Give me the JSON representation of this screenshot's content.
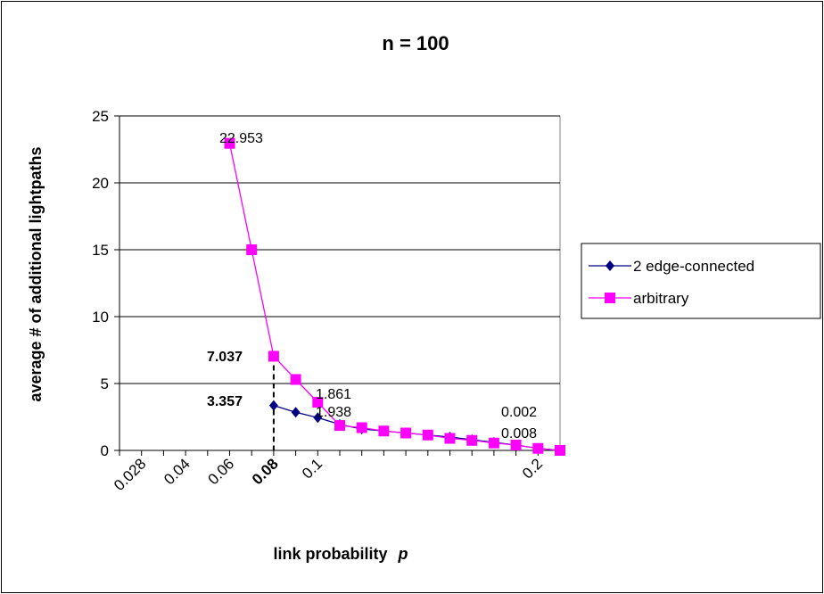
{
  "chart_data": {
    "type": "line",
    "title": "n = 100",
    "xlabel": "link probability",
    "xlabel_var": "p",
    "ylabel": "average # of additional lightpaths",
    "ylim": [
      0,
      25
    ],
    "y_ticks": [
      "0",
      "5",
      "10",
      "15",
      "20",
      "25"
    ],
    "x_ticks": [
      "0.028",
      "0.04",
      "0.06",
      "0.08",
      "0.1",
      "0.2"
    ],
    "x_tick_positions": [
      1,
      3,
      5,
      7,
      9,
      19
    ],
    "x_tick_bold": "0.08",
    "x_range": [
      0,
      20
    ],
    "grid": "horizontal",
    "legend_position": "right",
    "series": [
      {
        "name": "2 edge-connected",
        "color": "#000080",
        "marker": "diamond",
        "x": [
          7,
          8,
          9,
          10,
          11,
          12,
          13,
          14,
          15,
          16,
          17,
          18,
          19,
          20
        ],
        "values": [
          3.357,
          2.85,
          2.45,
          1.938,
          1.6,
          1.45,
          1.3,
          1.15,
          1.0,
          0.8,
          0.6,
          0.4,
          0.15,
          0.008
        ]
      },
      {
        "name": "arbitrary",
        "color": "#ff00ff",
        "marker": "square",
        "x": [
          5,
          6,
          7,
          8,
          9,
          10,
          11,
          12,
          13,
          14,
          15,
          16,
          17,
          18,
          19,
          20
        ],
        "values": [
          22.953,
          15.0,
          7.037,
          5.3,
          3.6,
          1.861,
          1.7,
          1.45,
          1.3,
          1.15,
          0.9,
          0.75,
          0.55,
          0.4,
          0.15,
          0.002
        ]
      }
    ],
    "annotations": [
      {
        "text": "22.953",
        "bold": false
      },
      {
        "text": "7.037",
        "bold": true
      },
      {
        "text": "3.357",
        "bold": true
      },
      {
        "text": "1.861",
        "bold": false
      },
      {
        "text": "1.938",
        "bold": false
      },
      {
        "text": "0.002",
        "bold": false
      },
      {
        "text": "0.008",
        "bold": false
      }
    ]
  }
}
